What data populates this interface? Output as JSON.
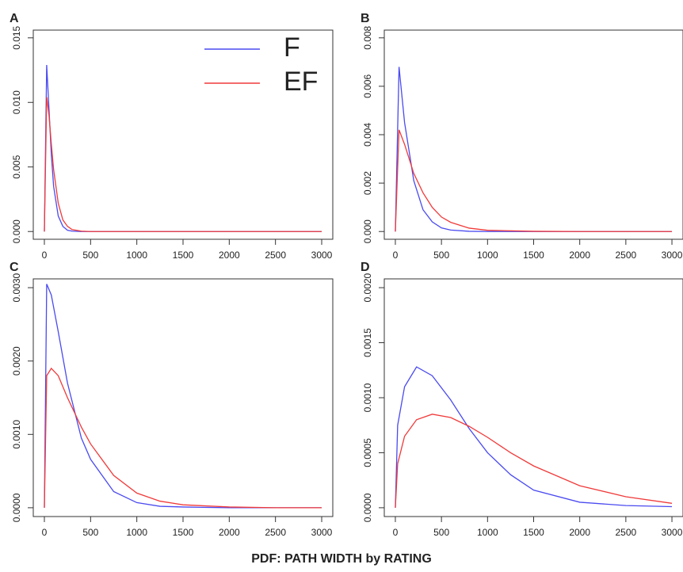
{
  "caption": "PDF:  PATH WIDTH by RATING",
  "chart_data": [
    {
      "type": "line",
      "title": "A",
      "legend": "top-right",
      "x": [
        0,
        25,
        50,
        75,
        100,
        150,
        200,
        250,
        300,
        400,
        500,
        1000,
        2000,
        3000
      ],
      "series": [
        {
          "name": "F",
          "color": "#4a4af0",
          "values": [
            0,
            0.0129,
            0.0095,
            0.006,
            0.0035,
            0.0012,
            0.0004,
            0.0001,
            3e-05,
            0,
            0,
            0,
            0,
            0
          ]
        },
        {
          "name": "EF",
          "color": "#f03a3a",
          "values": [
            0,
            0.0104,
            0.009,
            0.0068,
            0.0048,
            0.0022,
            0.0009,
            0.0004,
            0.00015,
            3e-05,
            0,
            0,
            0,
            0
          ]
        }
      ],
      "xlim": [
        -120,
        3120
      ],
      "xticks": [
        0,
        500,
        1000,
        1500,
        2000,
        2500,
        3000
      ],
      "ylim": [
        -0.0006,
        0.0156
      ],
      "yticks": [
        {
          "value": 0,
          "label": "0.000"
        },
        {
          "value": 0.005,
          "label": "0.005"
        },
        {
          "value": 0.01,
          "label": "0.010"
        },
        {
          "value": 0.015,
          "label": "0.015"
        }
      ]
    },
    {
      "type": "line",
      "title": "B",
      "x": [
        0,
        40,
        100,
        200,
        300,
        400,
        500,
        600,
        800,
        1000,
        1500,
        2000,
        3000
      ],
      "series": [
        {
          "name": "F",
          "color": "#4a4af0",
          "values": [
            0,
            0.0068,
            0.0045,
            0.0021,
            0.0009,
            0.0004,
            0.00015,
            6e-05,
            1e-05,
            0,
            0,
            0,
            0
          ]
        },
        {
          "name": "EF",
          "color": "#f03a3a",
          "values": [
            0,
            0.0042,
            0.0036,
            0.0024,
            0.0016,
            0.001,
            0.0006,
            0.00038,
            0.00014,
            5e-05,
            1e-05,
            0,
            0
          ]
        }
      ],
      "xlim": [
        -120,
        3120
      ],
      "xticks": [
        0,
        500,
        1000,
        1500,
        2000,
        2500,
        3000
      ],
      "ylim": [
        -0.00032,
        0.00832
      ],
      "yticks": [
        {
          "value": 0,
          "label": "0.000"
        },
        {
          "value": 0.002,
          "label": "0.002"
        },
        {
          "value": 0.004,
          "label": "0.004"
        },
        {
          "value": 0.006,
          "label": "0.006"
        },
        {
          "value": 0.008,
          "label": "0.008"
        }
      ]
    },
    {
      "type": "line",
      "title": "C",
      "x": [
        0,
        25,
        75,
        150,
        250,
        400,
        500,
        750,
        1000,
        1250,
        1500,
        2000,
        2500,
        3000
      ],
      "series": [
        {
          "name": "F",
          "color": "#4a4af0",
          "values": [
            0,
            0.00305,
            0.0029,
            0.0024,
            0.0017,
            0.00095,
            0.00066,
            0.00022,
            7e-05,
            2e-05,
            1e-05,
            0,
            0,
            0
          ]
        },
        {
          "name": "EF",
          "color": "#f03a3a",
          "values": [
            0,
            0.0018,
            0.0019,
            0.0018,
            0.0015,
            0.0011,
            0.00087,
            0.00044,
            0.0002,
            9e-05,
            4e-05,
            1e-05,
            0,
            0
          ]
        }
      ],
      "xlim": [
        -120,
        3120
      ],
      "xticks": [
        0,
        500,
        1000,
        1500,
        2000,
        2500,
        3000
      ],
      "ylim": [
        -0.00012,
        0.00312
      ],
      "yticks": [
        {
          "value": 0,
          "label": "0.0000"
        },
        {
          "value": 0.001,
          "label": "0.0010"
        },
        {
          "value": 0.002,
          "label": "0.0020"
        },
        {
          "value": 0.003,
          "label": "0.0030"
        }
      ]
    },
    {
      "type": "line",
      "title": "D",
      "x": [
        0,
        25,
        100,
        230,
        400,
        600,
        800,
        1000,
        1250,
        1500,
        2000,
        2500,
        3000
      ],
      "series": [
        {
          "name": "F",
          "color": "#4a4af0",
          "values": [
            0,
            0.00075,
            0.0011,
            0.00128,
            0.0012,
            0.00098,
            0.00072,
            0.0005,
            0.0003,
            0.00016,
            5e-05,
            2e-05,
            1e-05
          ]
        },
        {
          "name": "EF",
          "color": "#f03a3a",
          "values": [
            0,
            0.0004,
            0.00065,
            0.0008,
            0.00085,
            0.00082,
            0.00074,
            0.00064,
            0.0005,
            0.00038,
            0.0002,
            0.0001,
            4e-05
          ]
        }
      ],
      "xlim": [
        -120,
        3120
      ],
      "xticks": [
        0,
        500,
        1000,
        1500,
        2000,
        2500,
        3000
      ],
      "ylim": [
        -8e-05,
        0.00208
      ],
      "yticks": [
        {
          "value": 0,
          "label": "0.0000"
        },
        {
          "value": 0.0005,
          "label": "0.0005"
        },
        {
          "value": 0.001,
          "label": "0.0010"
        },
        {
          "value": 0.0015,
          "label": "0.0015"
        },
        {
          "value": 0.002,
          "label": "0.0020"
        }
      ]
    }
  ]
}
